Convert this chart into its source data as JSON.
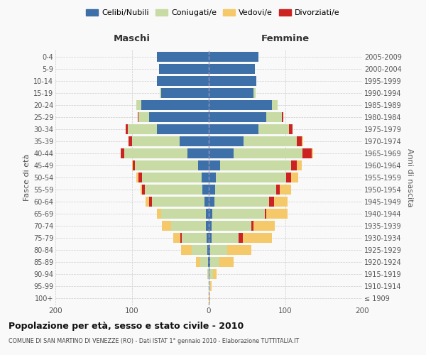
{
  "age_groups": [
    "100+",
    "95-99",
    "90-94",
    "85-89",
    "80-84",
    "75-79",
    "70-74",
    "65-69",
    "60-64",
    "55-59",
    "50-54",
    "45-49",
    "40-44",
    "35-39",
    "30-34",
    "25-29",
    "20-24",
    "15-19",
    "10-14",
    "5-9",
    "0-4"
  ],
  "birth_years": [
    "≤ 1909",
    "1910-1914",
    "1915-1919",
    "1920-1924",
    "1925-1929",
    "1930-1934",
    "1935-1939",
    "1940-1944",
    "1945-1949",
    "1950-1954",
    "1955-1959",
    "1960-1964",
    "1965-1969",
    "1970-1974",
    "1975-1979",
    "1980-1984",
    "1985-1989",
    "1990-1994",
    "1995-1999",
    "2000-2004",
    "2005-2009"
  ],
  "male_celibi": [
    0,
    0,
    0,
    1,
    2,
    3,
    4,
    4,
    6,
    8,
    9,
    14,
    28,
    38,
    68,
    78,
    88,
    62,
    68,
    65,
    68
  ],
  "male_coniugati": [
    0,
    0,
    2,
    10,
    20,
    32,
    45,
    58,
    68,
    75,
    78,
    82,
    82,
    62,
    38,
    14,
    6,
    2,
    0,
    0,
    0
  ],
  "male_vedovi": [
    0,
    0,
    0,
    6,
    14,
    9,
    12,
    6,
    4,
    2,
    2,
    1,
    0,
    0,
    0,
    0,
    0,
    0,
    0,
    0,
    0
  ],
  "male_divorziati": [
    0,
    0,
    0,
    0,
    0,
    2,
    0,
    0,
    4,
    4,
    5,
    3,
    5,
    5,
    2,
    1,
    0,
    0,
    0,
    0,
    0
  ],
  "female_celibi": [
    0,
    0,
    1,
    2,
    2,
    4,
    4,
    5,
    7,
    8,
    9,
    15,
    32,
    45,
    65,
    75,
    82,
    58,
    62,
    60,
    65
  ],
  "female_coniugati": [
    0,
    2,
    5,
    12,
    22,
    35,
    52,
    68,
    72,
    80,
    92,
    92,
    90,
    70,
    40,
    20,
    8,
    3,
    0,
    0,
    0
  ],
  "female_vedovi": [
    2,
    2,
    4,
    18,
    32,
    38,
    28,
    28,
    18,
    14,
    10,
    6,
    2,
    2,
    0,
    0,
    0,
    0,
    0,
    0,
    0
  ],
  "female_divorziati": [
    0,
    0,
    0,
    0,
    0,
    5,
    2,
    2,
    6,
    5,
    6,
    8,
    12,
    6,
    4,
    2,
    0,
    0,
    0,
    0,
    0
  ],
  "color_celibi": "#3d6fa8",
  "color_coniugati": "#c8dba4",
  "color_vedovi": "#f5c96a",
  "color_divorziati": "#cc2222",
  "title": "Popolazione per età, sesso e stato civile - 2010",
  "subtitle": "COMUNE DI SAN MARTINO DI VENEZZE (RO) - Dati ISTAT 1° gennaio 2010 - Elaborazione TUTTITALIA.IT",
  "xlabel_left": "Maschi",
  "xlabel_right": "Femmine",
  "ylabel_left": "Fasce di età",
  "ylabel_right": "Anni di nascita",
  "xlim": 200,
  "bg_color": "#f9f9f9",
  "bar_height": 0.82
}
